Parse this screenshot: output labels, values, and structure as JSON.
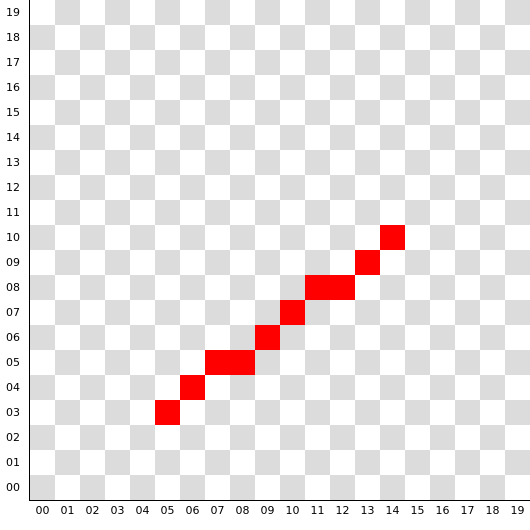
{
  "grid": {
    "columns": 20,
    "rows": 20,
    "x_labels": [
      "00",
      "01",
      "02",
      "03",
      "04",
      "05",
      "06",
      "07",
      "08",
      "09",
      "10",
      "11",
      "12",
      "13",
      "14",
      "15",
      "16",
      "17",
      "18",
      "19"
    ],
    "y_labels": [
      "00",
      "01",
      "02",
      "03",
      "04",
      "05",
      "06",
      "07",
      "08",
      "09",
      "10",
      "11",
      "12",
      "13",
      "14",
      "15",
      "16",
      "17",
      "18",
      "19"
    ],
    "colors": {
      "light": "#ffffff",
      "dark": "#dcdcdc",
      "filled": "#ff0000"
    },
    "filled_cells": [
      {
        "x": 5,
        "y": 3
      },
      {
        "x": 6,
        "y": 4
      },
      {
        "x": 7,
        "y": 5
      },
      {
        "x": 8,
        "y": 5
      },
      {
        "x": 9,
        "y": 6
      },
      {
        "x": 10,
        "y": 7
      },
      {
        "x": 11,
        "y": 8
      },
      {
        "x": 12,
        "y": 8
      },
      {
        "x": 13,
        "y": 9
      },
      {
        "x": 14,
        "y": 10
      }
    ]
  }
}
